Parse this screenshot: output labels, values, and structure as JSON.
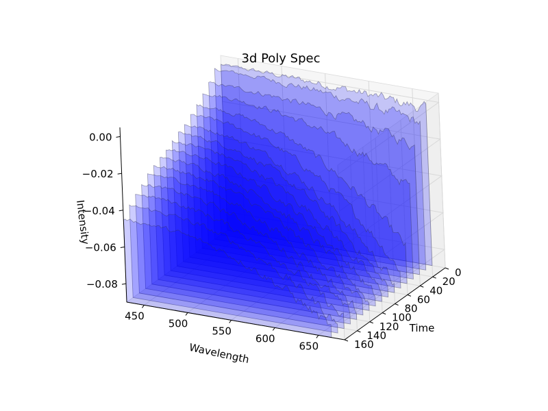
{
  "chart_data": {
    "type": "area",
    "projection": "3d",
    "title": "3d Poly Spec",
    "xlabel": "Wavelength",
    "ylabel": "Time",
    "zlabel": "Intensity",
    "xlim": [
      430,
      680
    ],
    "ylim": [
      0,
      160
    ],
    "zlim": [
      -0.09,
      0.005
    ],
    "x_ticks": [
      450,
      500,
      550,
      600,
      650
    ],
    "y_ticks": [
      0,
      20,
      40,
      60,
      80,
      100,
      120,
      140,
      160
    ],
    "z_ticks": [
      0.0,
      -0.02,
      -0.04,
      -0.06,
      -0.08
    ],
    "z_tick_labels": [
      "0.00",
      "−0.02",
      "−0.04",
      "−0.06",
      "−0.08"
    ],
    "grid": true,
    "fill_color": "#0000ff",
    "fill_opacity": 0.2,
    "edge_color": "#333355",
    "pane_color": "#f2f2f2",
    "series_count": 17,
    "series_note_values": {
      "wavelength_start": 430,
      "wavelength_end": 665,
      "time_values": [
        0,
        10,
        20,
        30,
        40,
        50,
        60,
        70,
        80,
        90,
        100,
        110,
        120,
        130,
        140,
        150,
        160
      ],
      "peak_intensity_at_start": [
        0.0,
        0.0,
        -0.005,
        -0.008,
        -0.012,
        -0.015,
        -0.018,
        -0.02,
        -0.022,
        -0.024,
        -0.026,
        -0.028,
        -0.03,
        -0.033,
        -0.036,
        -0.04,
        -0.045
      ],
      "intensity_at_end": [
        -0.005,
        -0.01,
        -0.02,
        -0.04,
        -0.07,
        -0.08,
        -0.085,
        -0.085,
        -0.085,
        -0.085,
        -0.085,
        -0.085,
        -0.085,
        -0.085,
        -0.085,
        -0.085,
        -0.085
      ]
    }
  }
}
